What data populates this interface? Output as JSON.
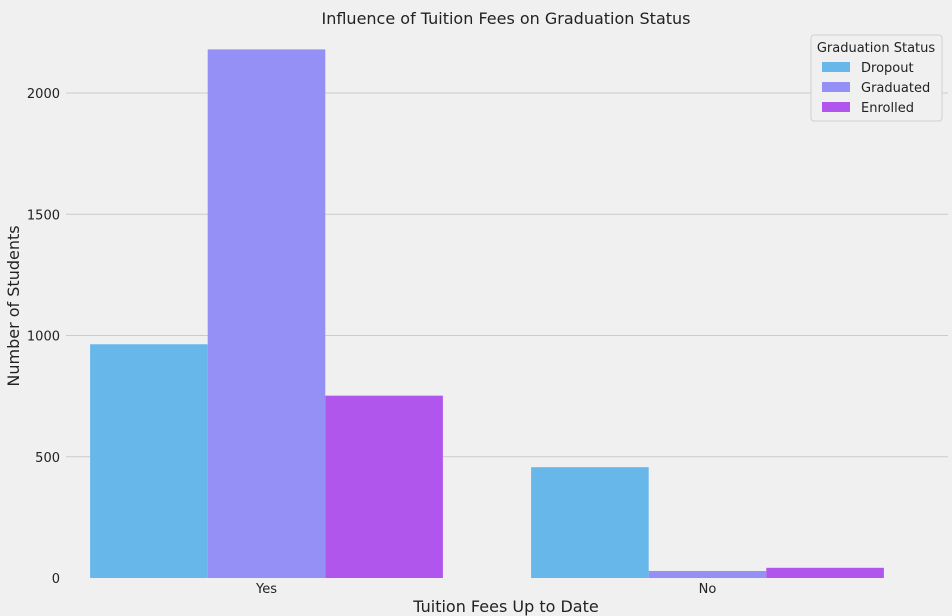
{
  "chart_data": {
    "type": "bar",
    "title": "Influence of Tuition Fees on Graduation Status",
    "xlabel": "Tuition Fees Up to Date",
    "ylabel": "Number of Students",
    "categories": [
      "Yes",
      "No"
    ],
    "series": [
      {
        "name": "Dropout",
        "values": [
          964,
          457
        ],
        "color": "#68b7ea"
      },
      {
        "name": "Graduated",
        "values": [
          2180,
          29
        ],
        "color": "#9490f5"
      },
      {
        "name": "Enrolled",
        "values": [
          752,
          42
        ],
        "color": "#b156ed"
      }
    ],
    "ylim": [
      0,
      2260
    ],
    "yticks": [
      0,
      500,
      1000,
      1500,
      2000
    ],
    "grid": true,
    "legend": {
      "title": "Graduation Status",
      "position": "top-right"
    },
    "background": "#f0f0f0"
  }
}
